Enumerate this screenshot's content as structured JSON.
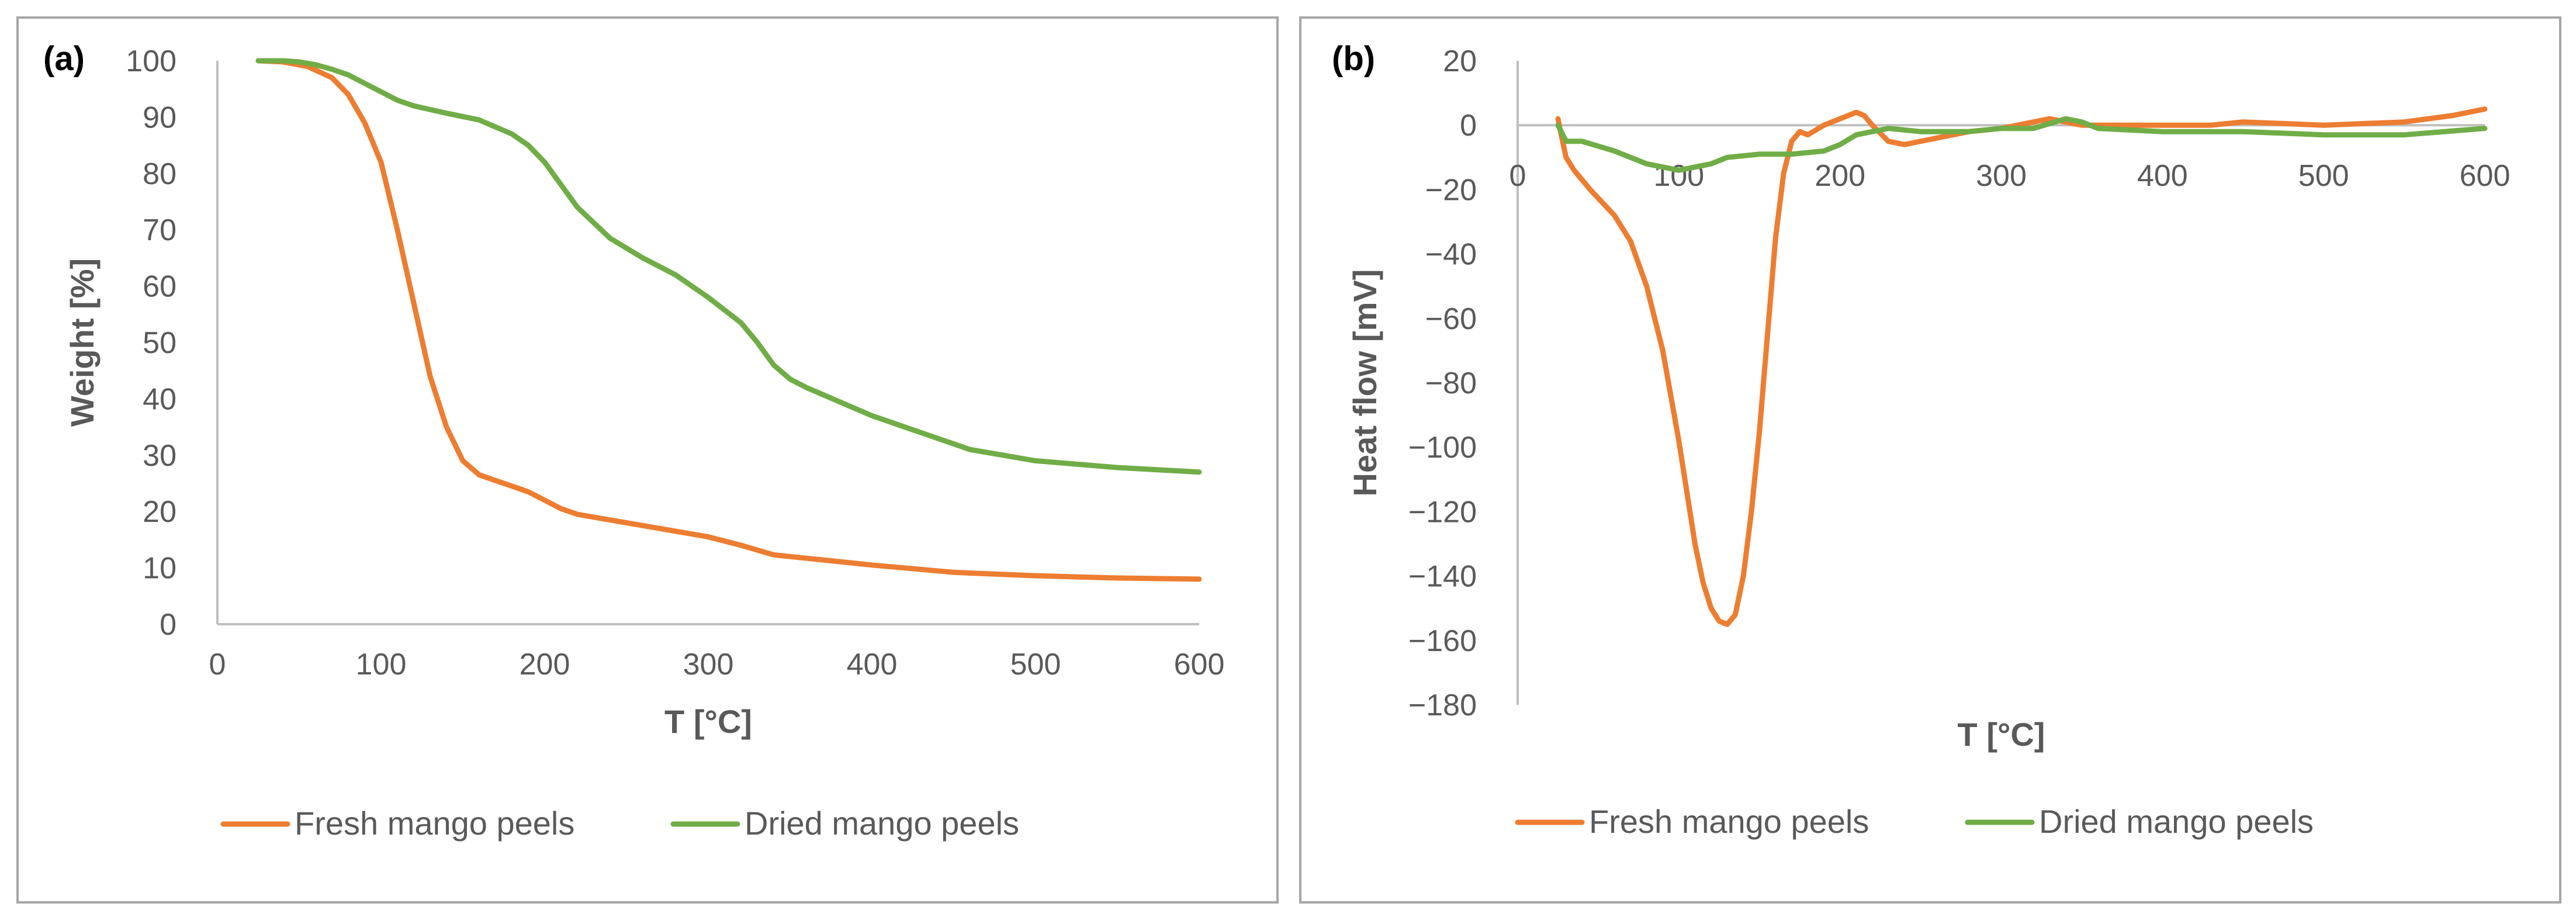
{
  "colors": {
    "fresh": "#ED7D31",
    "dried": "#70AD47",
    "axis": "#BFBFBF",
    "text": "#595959"
  },
  "chart_data": [
    {
      "type": "line",
      "panel_label": "(a)",
      "title": "",
      "xlabel": "T [°C]",
      "ylabel": "Weight [%]",
      "xlim": [
        0,
        600
      ],
      "ylim": [
        0,
        100
      ],
      "xticks": [
        0,
        100,
        200,
        300,
        400,
        500,
        600
      ],
      "yticks": [
        0,
        10,
        20,
        30,
        40,
        50,
        60,
        70,
        80,
        90,
        100
      ],
      "legend_position": "bottom",
      "series": [
        {
          "name": "Fresh mango peels",
          "color_key": "fresh",
          "x": [
            25,
            40,
            55,
            70,
            80,
            90,
            100,
            110,
            120,
            130,
            140,
            150,
            160,
            170,
            180,
            190,
            200,
            210,
            220,
            240,
            260,
            280,
            300,
            320,
            340,
            350,
            360,
            400,
            450,
            500,
            550,
            600
          ],
          "y": [
            100,
            99.8,
            99,
            97,
            94,
            89,
            82,
            70,
            57,
            44,
            35,
            29,
            26.5,
            25.5,
            24.5,
            23.5,
            22,
            20.5,
            19.5,
            18.5,
            17.5,
            16.5,
            15.5,
            14,
            12.3,
            12,
            11.7,
            10.5,
            9.2,
            8.6,
            8.2,
            8
          ]
        },
        {
          "name": "Dried mango peels",
          "color_key": "dried",
          "x": [
            25,
            40,
            50,
            60,
            70,
            80,
            90,
            100,
            110,
            120,
            140,
            160,
            180,
            190,
            200,
            210,
            220,
            240,
            260,
            280,
            300,
            320,
            330,
            340,
            350,
            360,
            380,
            400,
            430,
            460,
            500,
            550,
            600
          ],
          "y": [
            100,
            100,
            99.8,
            99.3,
            98.5,
            97.5,
            96,
            94.5,
            93,
            92,
            90.7,
            89.5,
            87,
            85,
            82,
            78,
            74,
            68.5,
            65,
            62,
            58,
            53.5,
            50,
            46,
            43.5,
            42,
            39.5,
            37,
            34,
            31,
            29,
            27.8,
            27
          ]
        }
      ]
    },
    {
      "type": "line",
      "panel_label": "(b)",
      "title": "",
      "xlabel": "T [°C]",
      "ylabel": "Heat flow [mV]",
      "xlim": [
        0,
        600
      ],
      "ylim": [
        -180,
        20
      ],
      "xticks": [
        0,
        100,
        200,
        300,
        400,
        500,
        600
      ],
      "yticks": [
        20,
        0,
        -20,
        -40,
        -60,
        -80,
        -100,
        -120,
        -140,
        -160,
        -180
      ],
      "legend_position": "bottom",
      "series": [
        {
          "name": "Fresh mango peels",
          "color_key": "fresh",
          "x": [
            25,
            27,
            30,
            35,
            45,
            60,
            70,
            80,
            90,
            100,
            110,
            115,
            120,
            125,
            130,
            135,
            140,
            145,
            150,
            155,
            160,
            165,
            170,
            175,
            180,
            190,
            200,
            210,
            215,
            220,
            230,
            240,
            260,
            280,
            300,
            320,
            330,
            340,
            350,
            400,
            430,
            450,
            500,
            550,
            580,
            600
          ],
          "y": [
            2,
            -3,
            -10,
            -14,
            -20,
            -28,
            -36,
            -50,
            -70,
            -98,
            -130,
            -142,
            -150,
            -154,
            -155,
            -152,
            -140,
            -120,
            -95,
            -65,
            -35,
            -15,
            -5,
            -2,
            -3,
            0,
            2,
            4,
            3,
            0,
            -5,
            -6,
            -4,
            -2,
            -1,
            1,
            2,
            1,
            0,
            0,
            0,
            1,
            0,
            1,
            3,
            5
          ]
        },
        {
          "name": "Dried mango peels",
          "color_key": "dried",
          "x": [
            25,
            30,
            40,
            60,
            80,
            100,
            110,
            120,
            130,
            150,
            170,
            190,
            200,
            210,
            230,
            250,
            280,
            300,
            320,
            340,
            350,
            360,
            400,
            450,
            500,
            550,
            600
          ],
          "y": [
            0,
            -5,
            -5,
            -8,
            -12,
            -14,
            -13,
            -12,
            -10,
            -9,
            -9,
            -8,
            -6,
            -3,
            -1,
            -2,
            -2,
            -1,
            -1,
            2,
            1,
            -1,
            -2,
            -2,
            -3,
            -3,
            -1
          ]
        }
      ]
    }
  ]
}
